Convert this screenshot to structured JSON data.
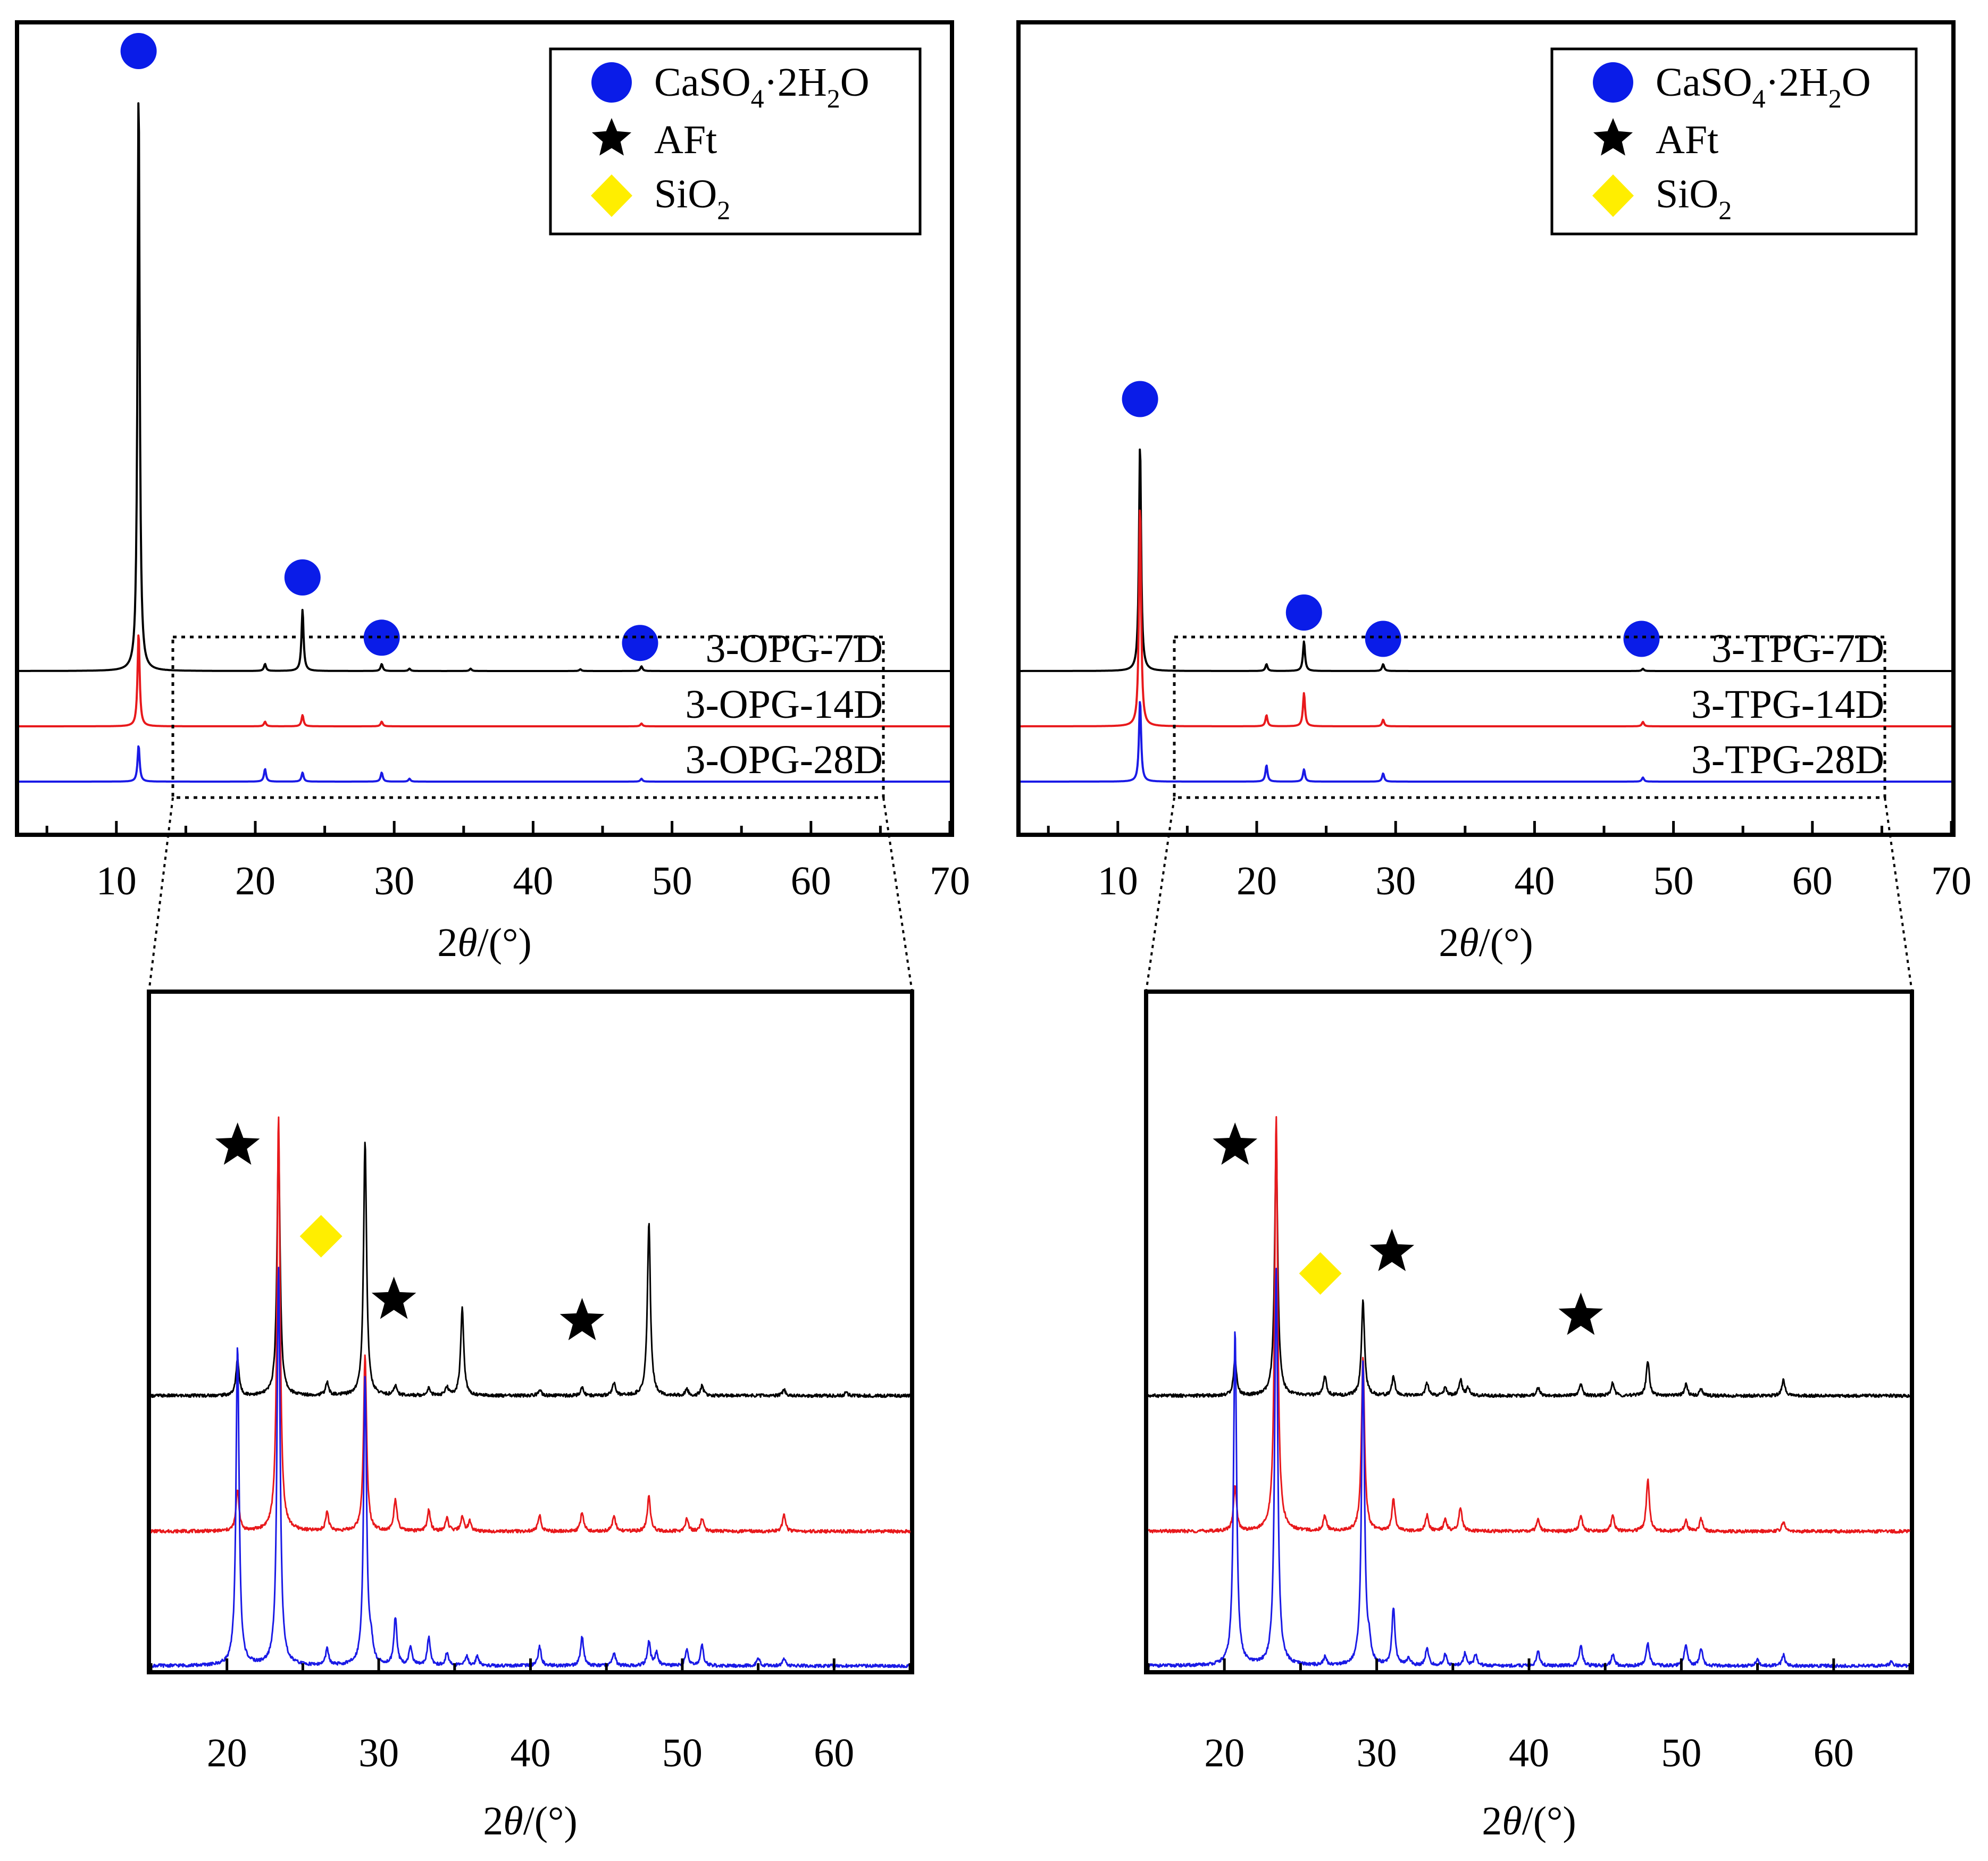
{
  "colors": {
    "black": "#000000",
    "red": "#e8191c",
    "blue": "#1a1ae6",
    "marker_circle": "#0a1ce8",
    "marker_diamond": "#ffee00",
    "marker_star": "#000000"
  },
  "legend": [
    {
      "marker": "circle",
      "pre": "CaSO",
      "sub1": "4",
      "mid": "·2H",
      "sub2": "2",
      "post": "O"
    },
    {
      "marker": "star",
      "pre": "AFt",
      "sub1": "",
      "mid": "",
      "sub2": "",
      "post": ""
    },
    {
      "marker": "diamond",
      "pre": "SiO",
      "sub1": "2",
      "mid": "",
      "sub2": "",
      "post": ""
    }
  ],
  "chart_data": [
    {
      "id": "top-left",
      "type": "line",
      "title": "",
      "xlabel_prefix": "2",
      "xlabel_theta": "θ",
      "xlabel_suffix": "/(°)",
      "ylabel": "",
      "xlim": [
        3,
        70
      ],
      "xticks": [
        10,
        20,
        30,
        40,
        50,
        60,
        70
      ],
      "zoom_range": [
        15,
        65
      ],
      "series": [
        {
          "name": "3-OPG-7D",
          "color": "black",
          "height": 1.0,
          "peaks": [
            [
              11.6,
              1.0
            ],
            [
              20.7,
              0.012
            ],
            [
              23.4,
              0.105
            ],
            [
              29.1,
              0.012
            ],
            [
              31.1,
              0.004
            ],
            [
              35.5,
              0.004
            ],
            [
              43.4,
              0.003
            ],
            [
              47.8,
              0.008
            ]
          ]
        },
        {
          "name": "3-OPG-14D",
          "color": "red",
          "height": 0.16,
          "peaks": [
            [
              11.6,
              1.0
            ],
            [
              20.7,
              0.05
            ],
            [
              23.4,
              0.12
            ],
            [
              29.1,
              0.05
            ],
            [
              47.8,
              0.03
            ]
          ]
        },
        {
          "name": "3-OPG-28D",
          "color": "blue",
          "height": 0.062,
          "peaks": [
            [
              11.6,
              1.0
            ],
            [
              20.7,
              0.35
            ],
            [
              23.4,
              0.25
            ],
            [
              29.1,
              0.25
            ],
            [
              31.1,
              0.08
            ],
            [
              47.8,
              0.08
            ]
          ]
        }
      ],
      "markers": [
        {
          "kind": "circle",
          "x": 11.6,
          "y": 1.06
        },
        {
          "kind": "circle",
          "x": 23.4,
          "y": 0.16
        },
        {
          "kind": "circle",
          "x": 29.1,
          "y": 0.057
        },
        {
          "kind": "circle",
          "x": 47.7,
          "y": 0.048
        }
      ]
    },
    {
      "id": "top-right",
      "type": "line",
      "title": "",
      "xlabel_prefix": "2",
      "xlabel_theta": "θ",
      "xlabel_suffix": "/(°)",
      "ylabel": "",
      "xlim": [
        3,
        70
      ],
      "xticks": [
        10,
        20,
        30,
        40,
        50,
        60,
        70
      ],
      "zoom_range": [
        15,
        65
      ],
      "series": [
        {
          "name": "3-TPG-7D",
          "color": "black",
          "height": 0.39,
          "peaks": [
            [
              11.6,
              1.0
            ],
            [
              20.7,
              0.03
            ],
            [
              23.4,
              0.13
            ],
            [
              29.1,
              0.03
            ],
            [
              47.8,
              0.01
            ]
          ]
        },
        {
          "name": "3-TPG-14D",
          "color": "red",
          "height": 0.38,
          "peaks": [
            [
              11.6,
              1.0
            ],
            [
              20.7,
              0.05
            ],
            [
              23.4,
              0.15
            ],
            [
              29.1,
              0.03
            ],
            [
              47.8,
              0.02
            ]
          ]
        },
        {
          "name": "3-TPG-28D",
          "color": "blue",
          "height": 0.14,
          "peaks": [
            [
              11.6,
              1.0
            ],
            [
              20.7,
              0.2
            ],
            [
              23.4,
              0.15
            ],
            [
              29.1,
              0.1
            ],
            [
              47.8,
              0.05
            ]
          ]
        }
      ],
      "markers": [
        {
          "kind": "circle",
          "x": 11.6,
          "y": 0.465
        },
        {
          "kind": "circle",
          "x": 23.4,
          "y": 0.1
        },
        {
          "kind": "circle",
          "x": 29.1,
          "y": 0.055
        },
        {
          "kind": "circle",
          "x": 47.7,
          "y": 0.055
        }
      ]
    },
    {
      "id": "bottom-left",
      "type": "line",
      "title": "",
      "xlabel_prefix": "2",
      "xlabel_theta": "θ",
      "xlabel_suffix": "/(°)",
      "ylabel": "",
      "xlim": [
        15,
        65
      ],
      "xticks": [
        20,
        30,
        40,
        50,
        60
      ],
      "series": [
        {
          "name": "3-OPG-7D",
          "color": "black",
          "height": 1.0,
          "peaks": [
            [
              20.7,
              0.23
            ],
            [
              23.4,
              1.6
            ],
            [
              26.6,
              0.08
            ],
            [
              29.1,
              1.6
            ],
            [
              31.1,
              0.06
            ],
            [
              33.3,
              0.05
            ],
            [
              34.5,
              0.05
            ],
            [
              35.5,
              0.55
            ],
            [
              40.6,
              0.04
            ],
            [
              43.4,
              0.05
            ],
            [
              45.5,
              0.08
            ],
            [
              47.8,
              1.08
            ],
            [
              50.3,
              0.04
            ],
            [
              51.3,
              0.06
            ],
            [
              56.7,
              0.04
            ],
            [
              60.8,
              0.02
            ]
          ]
        },
        {
          "name": "3-OPG-14D",
          "color": "red",
          "height": 1.0,
          "peaks": [
            [
              20.7,
              0.26
            ],
            [
              23.4,
              2.6
            ],
            [
              26.6,
              0.12
            ],
            [
              29.1,
              1.1
            ],
            [
              31.1,
              0.2
            ],
            [
              33.3,
              0.13
            ],
            [
              34.5,
              0.08
            ],
            [
              35.5,
              0.09
            ],
            [
              36.0,
              0.06
            ],
            [
              40.6,
              0.1
            ],
            [
              43.4,
              0.12
            ],
            [
              45.5,
              0.1
            ],
            [
              47.8,
              0.22
            ],
            [
              50.3,
              0.08
            ],
            [
              51.3,
              0.08
            ],
            [
              56.7,
              0.1
            ]
          ]
        },
        {
          "name": "3-OPG-28D",
          "color": "blue",
          "height": 1.0,
          "peaks": [
            [
              20.7,
              2.0
            ],
            [
              23.4,
              2.5
            ],
            [
              26.6,
              0.1
            ],
            [
              29.1,
              1.8
            ],
            [
              29.5,
              0.12
            ],
            [
              31.1,
              0.3
            ],
            [
              32.1,
              0.12
            ],
            [
              33.3,
              0.18
            ],
            [
              34.5,
              0.08
            ],
            [
              35.8,
              0.06
            ],
            [
              36.5,
              0.06
            ],
            [
              40.6,
              0.12
            ],
            [
              43.4,
              0.18
            ],
            [
              45.5,
              0.08
            ],
            [
              47.8,
              0.15
            ],
            [
              48.3,
              0.08
            ],
            [
              50.3,
              0.1
            ],
            [
              51.3,
              0.13
            ],
            [
              55.0,
              0.05
            ],
            [
              56.7,
              0.05
            ]
          ]
        }
      ],
      "markers": [
        {
          "kind": "star",
          "x": 20.7,
          "y": 0.47
        },
        {
          "kind": "diamond",
          "x": 26.2,
          "y": 0.3
        },
        {
          "kind": "star",
          "x": 31.0,
          "y": 0.18
        },
        {
          "kind": "star",
          "x": 43.4,
          "y": 0.14
        }
      ]
    },
    {
      "id": "bottom-right",
      "type": "line",
      "title": "",
      "xlabel_prefix": "2",
      "xlabel_theta": "θ",
      "xlabel_suffix": "/(°)",
      "ylabel": "",
      "xlim": [
        15,
        65
      ],
      "xticks": [
        20,
        30,
        40,
        50,
        60
      ],
      "series": [
        {
          "name": "3-TPG-7D",
          "color": "black",
          "height": 1.0,
          "peaks": [
            [
              20.7,
              0.23
            ],
            [
              23.4,
              1.6
            ],
            [
              26.6,
              0.12
            ],
            [
              29.1,
              0.6
            ],
            [
              31.1,
              0.12
            ],
            [
              33.3,
              0.08
            ],
            [
              34.5,
              0.05
            ],
            [
              35.5,
              0.1
            ],
            [
              36.0,
              0.05
            ],
            [
              40.6,
              0.05
            ],
            [
              43.4,
              0.07
            ],
            [
              45.5,
              0.08
            ],
            [
              47.8,
              0.22
            ],
            [
              50.3,
              0.07
            ],
            [
              51.3,
              0.04
            ],
            [
              56.7,
              0.1
            ]
          ]
        },
        {
          "name": "3-TPG-14D",
          "color": "red",
          "height": 1.0,
          "peaks": [
            [
              20.7,
              0.28
            ],
            [
              23.4,
              2.6
            ],
            [
              26.6,
              0.1
            ],
            [
              29.1,
              1.1
            ],
            [
              31.1,
              0.2
            ],
            [
              33.3,
              0.1
            ],
            [
              34.5,
              0.08
            ],
            [
              35.5,
              0.15
            ],
            [
              40.6,
              0.07
            ],
            [
              43.4,
              0.1
            ],
            [
              45.5,
              0.1
            ],
            [
              47.8,
              0.32
            ],
            [
              50.3,
              0.07
            ],
            [
              51.3,
              0.08
            ],
            [
              56.7,
              0.06
            ]
          ]
        },
        {
          "name": "3-TPG-28D",
          "color": "blue",
          "height": 1.0,
          "peaks": [
            [
              20.7,
              2.1
            ],
            [
              23.4,
              2.5
            ],
            [
              26.6,
              0.05
            ],
            [
              29.1,
              1.9
            ],
            [
              29.5,
              0.1
            ],
            [
              31.1,
              0.36
            ],
            [
              32.1,
              0.05
            ],
            [
              33.3,
              0.11
            ],
            [
              34.5,
              0.07
            ],
            [
              35.8,
              0.08
            ],
            [
              36.5,
              0.07
            ],
            [
              40.6,
              0.09
            ],
            [
              43.4,
              0.13
            ],
            [
              45.5,
              0.07
            ],
            [
              47.8,
              0.14
            ],
            [
              50.3,
              0.14
            ],
            [
              51.3,
              0.11
            ],
            [
              55.0,
              0.04
            ],
            [
              56.7,
              0.07
            ],
            [
              63.8,
              0.03
            ]
          ]
        }
      ],
      "markers": [
        {
          "kind": "star",
          "x": 20.7,
          "y": 0.47
        },
        {
          "kind": "diamond",
          "x": 26.3,
          "y": 0.23
        },
        {
          "kind": "star",
          "x": 31.0,
          "y": 0.27
        },
        {
          "kind": "star",
          "x": 43.4,
          "y": 0.15
        }
      ]
    }
  ]
}
